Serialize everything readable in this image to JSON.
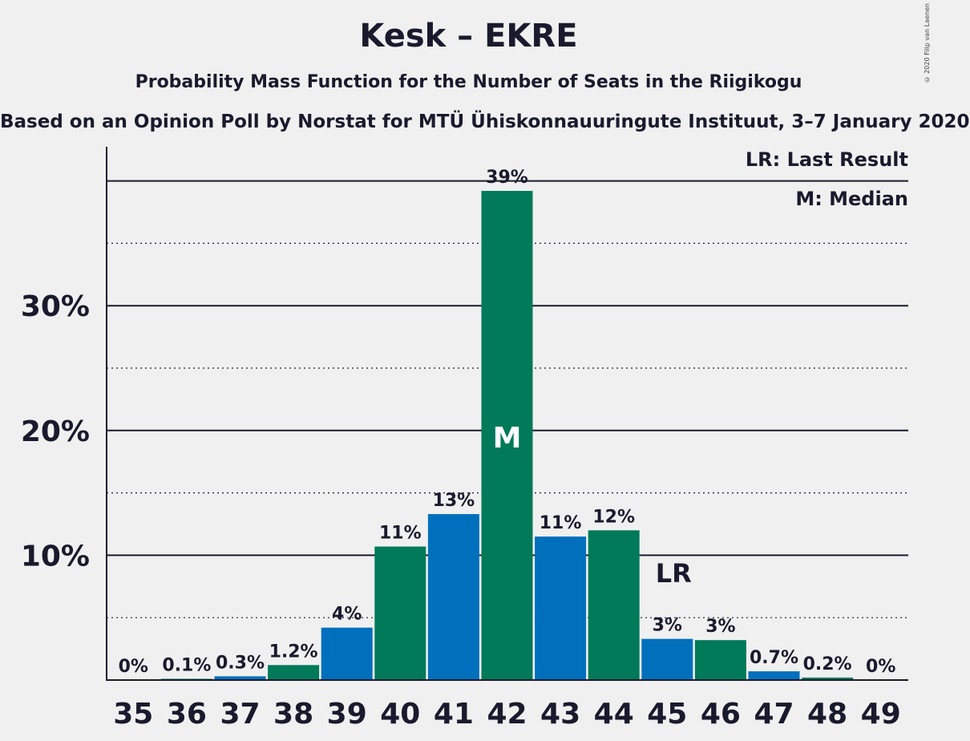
{
  "title": "Kesk – EKRE",
  "subtitle": "Probability Mass Function for the Number of Seats in the Riigikogu",
  "subtitle2": "Based on an Opinion Poll by Norstat for MTÜ Ühiskonnauuringute Instituut, 3–7 January 2020",
  "copyright": "© 2020 Filip van Laenen",
  "legend": {
    "last_result": "LR: Last Result",
    "median": "M: Median"
  },
  "colors": {
    "blue": "#0070bd",
    "green": "#007a59",
    "axis": "#1a1a2e"
  },
  "chart_data": {
    "type": "bar",
    "categories": [
      "35",
      "36",
      "37",
      "38",
      "39",
      "40",
      "41",
      "42",
      "43",
      "44",
      "45",
      "46",
      "47",
      "48",
      "49"
    ],
    "values": [
      0,
      0.1,
      0.3,
      1.2,
      4.2,
      10.7,
      13.3,
      39.2,
      11.5,
      12.0,
      3.3,
      3.2,
      0.7,
      0.2,
      0
    ],
    "data_labels": [
      "0%",
      "0.1%",
      "0.3%",
      "1.2%",
      "4%",
      "11%",
      "13%",
      "39%",
      "11%",
      "12%",
      "3%",
      "3%",
      "0.7%",
      "0.2%",
      "0%"
    ],
    "bar_colors": [
      "blue",
      "green",
      "blue",
      "green",
      "blue",
      "green",
      "blue",
      "green",
      "blue",
      "green",
      "blue",
      "green",
      "blue",
      "green",
      "blue"
    ],
    "y_ticks": [
      10,
      20,
      30
    ],
    "y_tick_labels": [
      "10%",
      "20%",
      "30%"
    ],
    "ylim": [
      0,
      42.8
    ],
    "gridlines": "solid at 10% steps, dotted at 5% offsets",
    "median_marker": {
      "category": "42",
      "label": "M"
    },
    "last_result_marker": {
      "category": "45",
      "label": "LR"
    },
    "legend_position": "top-right"
  }
}
